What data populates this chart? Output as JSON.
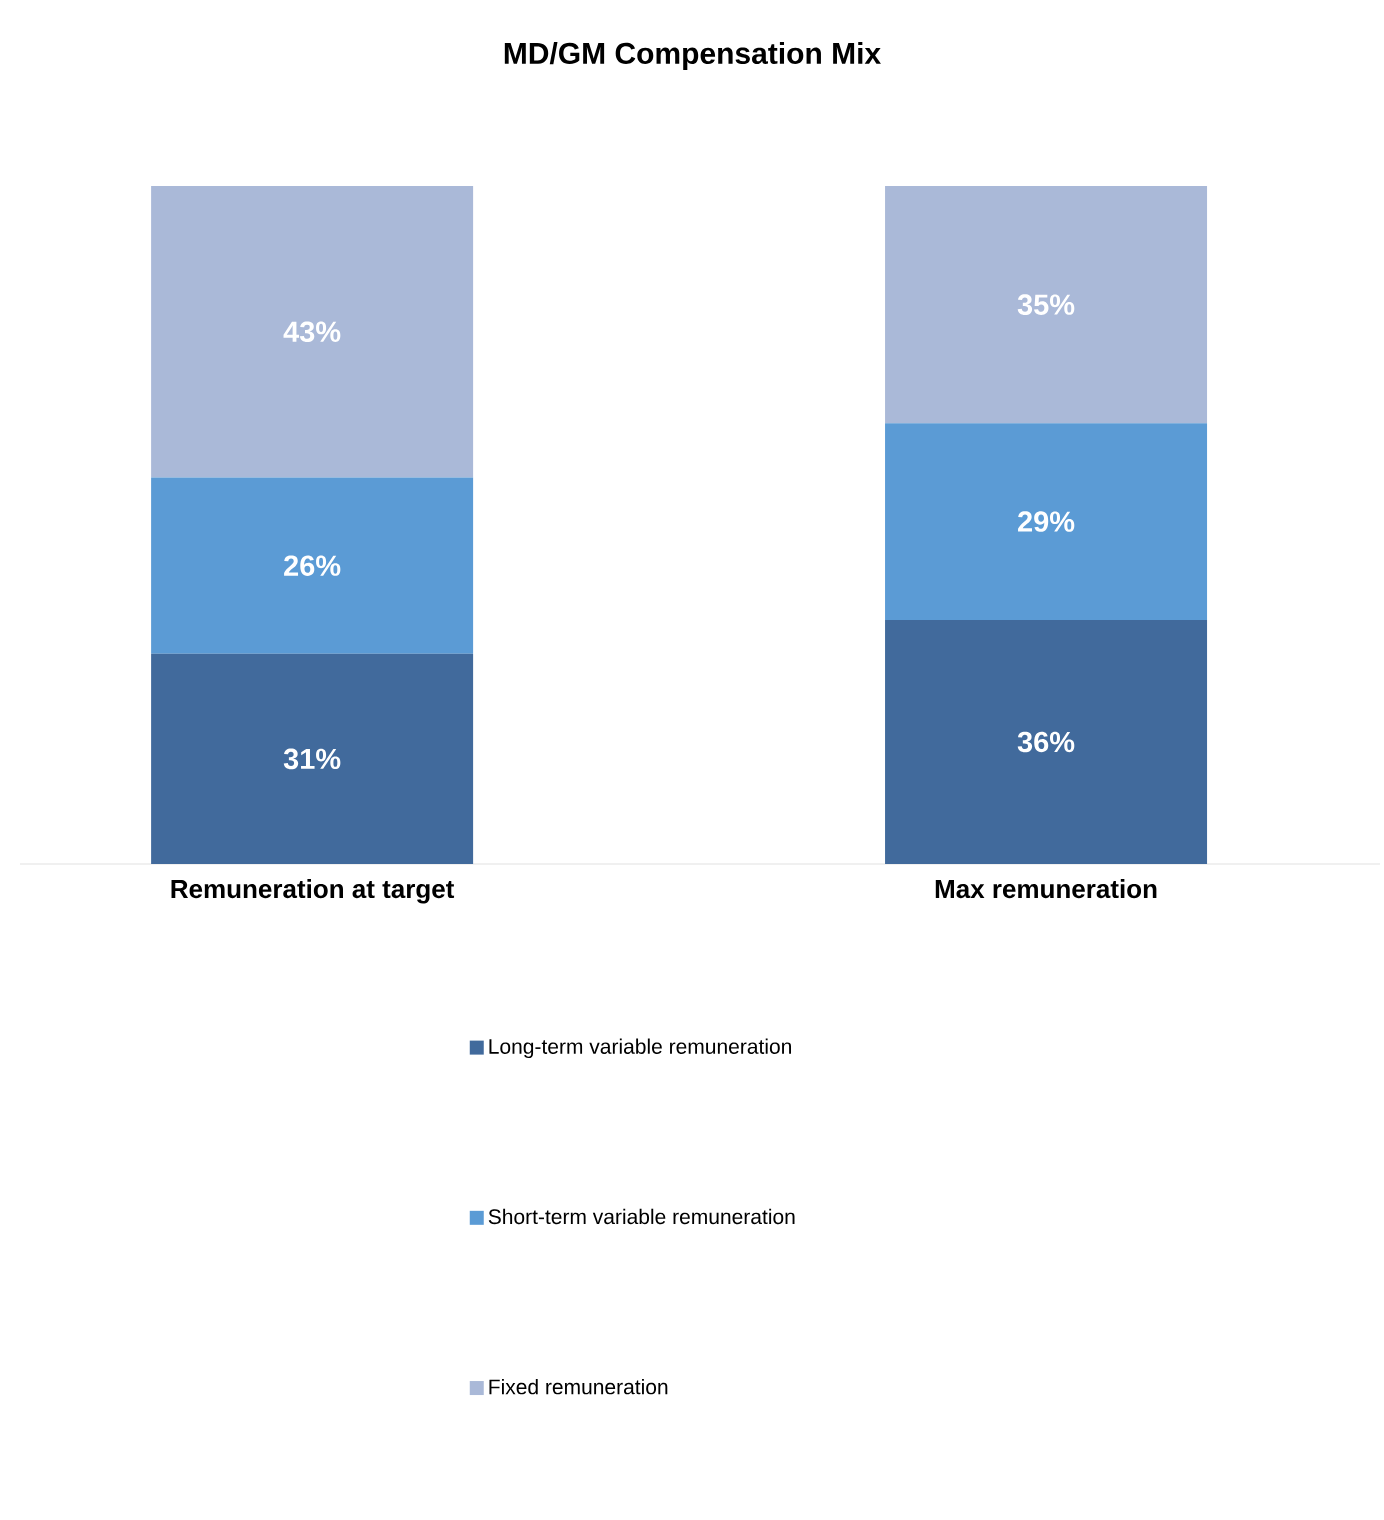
{
  "chart_data": {
    "type": "bar",
    "title": "MD/GM Compensation Mix",
    "stacked": true,
    "legend": "bottom",
    "categories": [
      "Remuneration at target",
      "Max remuneration"
    ],
    "series": [
      {
        "name": "Long-term variable remuneration",
        "color": "#416a9c",
        "values": [
          31,
          36
        ],
        "value_labels": [
          "31%",
          "36%"
        ]
      },
      {
        "name": "Short-term variable remuneration",
        "color": "#5b9bd5",
        "values": [
          26,
          29
        ],
        "value_labels": [
          "26%",
          "29%"
        ]
      },
      {
        "name": "Fixed remuneration",
        "color": "#aab9d8",
        "values": [
          43,
          35
        ],
        "value_labels": [
          "43%",
          "35%"
        ]
      }
    ]
  }
}
